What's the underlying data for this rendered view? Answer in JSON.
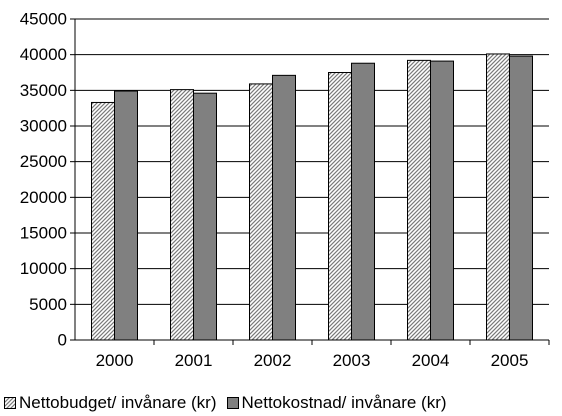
{
  "chart_data": {
    "type": "bar",
    "categories": [
      "2000",
      "2001",
      "2002",
      "2003",
      "2004",
      "2005"
    ],
    "series": [
      {
        "name": "Nettobudget/ invånare (kr)",
        "values": [
          33300,
          35100,
          35900,
          37500,
          39200,
          40100
        ],
        "color": "#d4d4d4",
        "pattern": "diagonal-hatch"
      },
      {
        "name": "Nettokostnad/ invånare (kr)",
        "values": [
          34900,
          34600,
          37100,
          38800,
          39100,
          39800
        ],
        "color": "#808080",
        "pattern": "solid"
      }
    ],
    "ylim": [
      0,
      45000
    ],
    "yticks": [
      "0",
      "5000",
      "10000",
      "15000",
      "20000",
      "25000",
      "30000",
      "35000",
      "40000",
      "45000"
    ],
    "title": "",
    "xlabel": "",
    "ylabel": "",
    "grid": "horizontal",
    "legend_position": "bottom"
  }
}
